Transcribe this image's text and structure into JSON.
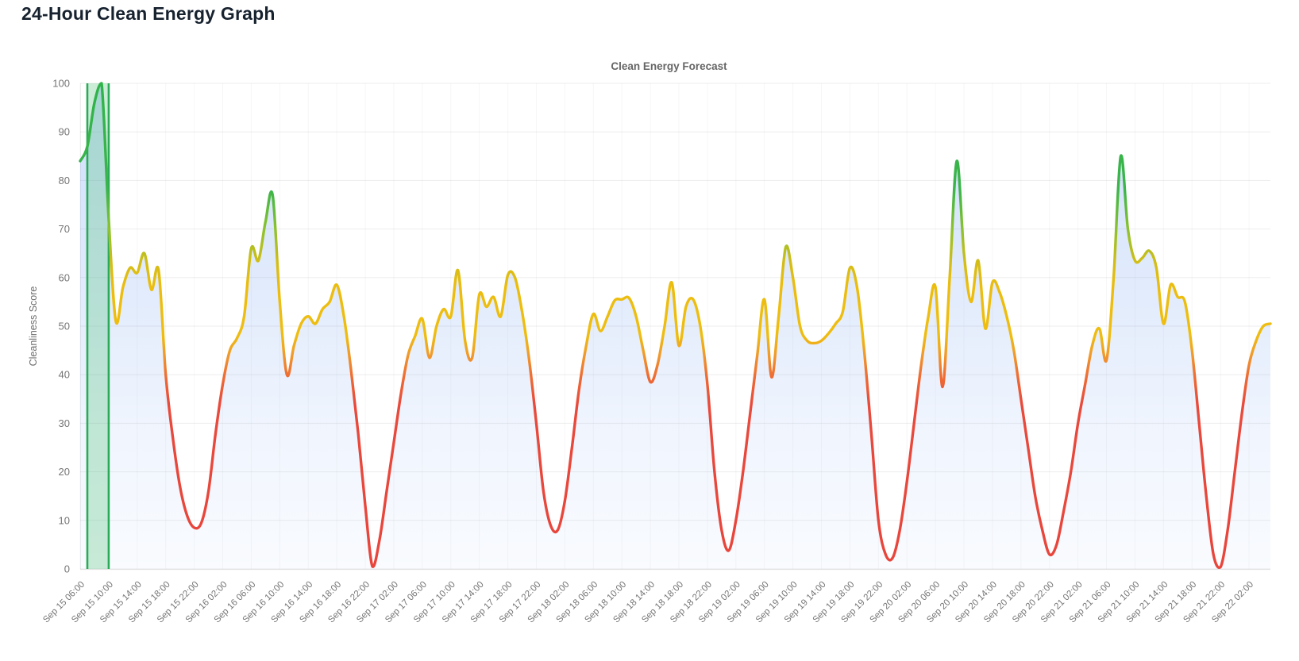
{
  "page": {
    "title": "24-Hour Clean Energy Graph"
  },
  "colors": {
    "page_title": "#17222f",
    "chart_title": "#666666",
    "axis_text": "#757575",
    "grid_line": "#ededed",
    "axis_line": "#e2e2e2",
    "line_red": "#e8453c",
    "line_orange": "#f0922f",
    "line_yellow": "#eebd10",
    "line_green": "#2fb34a",
    "area_fill_blue": "#6b9cf0",
    "band_green_fill": "#46be6e",
    "band_green_border": "#22a750"
  },
  "chart_data": {
    "type": "line",
    "title": "Clean Energy Forecast",
    "xlabel": "",
    "ylabel": "Cleanliness Score",
    "ylim": [
      0,
      100
    ],
    "y_tick_step": 10,
    "y_tick_labels": [
      "0",
      "10",
      "20",
      "30",
      "40",
      "50",
      "60",
      "70",
      "80",
      "90",
      "100"
    ],
    "grid": true,
    "legend": "none",
    "points_per_tick": 4,
    "hours_per_point": 1,
    "tick_labels": [
      "Sep 15 06:00",
      "Sep 15 10:00",
      "Sep 15 14:00",
      "Sep 15 18:00",
      "Sep 15 22:00",
      "Sep 16 02:00",
      "Sep 16 06:00",
      "Sep 16 10:00",
      "Sep 16 14:00",
      "Sep 16 18:00",
      "Sep 16 22:00",
      "Sep 17 02:00",
      "Sep 17 06:00",
      "Sep 17 10:00",
      "Sep 17 14:00",
      "Sep 17 18:00",
      "Sep 17 22:00",
      "Sep 18 02:00",
      "Sep 18 06:00",
      "Sep 18 10:00",
      "Sep 18 14:00",
      "Sep 18 18:00",
      "Sep 18 22:00",
      "Sep 19 02:00",
      "Sep 19 06:00",
      "Sep 19 10:00",
      "Sep 19 14:00",
      "Sep 19 18:00",
      "Sep 19 22:00",
      "Sep 20 02:00",
      "Sep 20 06:00",
      "Sep 20 10:00",
      "Sep 20 14:00",
      "Sep 20 18:00",
      "Sep 20 22:00",
      "Sep 21 02:00",
      "Sep 21 06:00",
      "Sep 21 10:00",
      "Sep 21 14:00",
      "Sep 21 18:00",
      "Sep 21 22:00",
      "Sep 22 02:00"
    ],
    "series": [
      {
        "name": "Cleanliness Score",
        "values": [
          84,
          87,
          96,
          100,
          72,
          51,
          58,
          62,
          61,
          65,
          57.5,
          61.5,
          40,
          27,
          17,
          11,
          8.5,
          9.5,
          16,
          28,
          38,
          45,
          47.5,
          52,
          66,
          63.5,
          71.5,
          77,
          55,
          40,
          46,
          50.5,
          52,
          50.5,
          53.5,
          55,
          58.5,
          52,
          41,
          28,
          13,
          0.5,
          6,
          16,
          26,
          36,
          44,
          48,
          51.5,
          43.5,
          50,
          53.5,
          52,
          61.5,
          47,
          43.5,
          56.5,
          54,
          56,
          52,
          60.5,
          60,
          53,
          43,
          30,
          16,
          9,
          8,
          14,
          25,
          37,
          46,
          52.5,
          49,
          52,
          55.3,
          55.5,
          55.8,
          52,
          45,
          38.5,
          42,
          50,
          59,
          46,
          54,
          55.5,
          50,
          38,
          20,
          8,
          3.8,
          10,
          20,
          32,
          44,
          55.5,
          39.5,
          52,
          66.3,
          60,
          50,
          47,
          46.5,
          47,
          48.5,
          50.5,
          53,
          62,
          58,
          45,
          28,
          10,
          3,
          2.3,
          8,
          18,
          30,
          42,
          52,
          58,
          37.5,
          60,
          84,
          65,
          55,
          63.5,
          49.5,
          59,
          57,
          52,
          45,
          35,
          25,
          15,
          8,
          3,
          5,
          12,
          20,
          30,
          38,
          46,
          49.5,
          43,
          60,
          85,
          70,
          63.5,
          64,
          65.5,
          62,
          50.5,
          58.5,
          56,
          55,
          45,
          30,
          15,
          3,
          0.4,
          8,
          20,
          32,
          42,
          47,
          50,
          50.5
        ]
      }
    ],
    "line_color_stops_by_value": [
      {
        "value": 100,
        "color": "#2fb34a"
      },
      {
        "value": 78,
        "color": "#3cb54a"
      },
      {
        "value": 70,
        "color": "#8cc22e"
      },
      {
        "value": 63,
        "color": "#d4bd17"
      },
      {
        "value": 58,
        "color": "#ecbd0e"
      },
      {
        "value": 48,
        "color": "#eebd10"
      },
      {
        "value": 44,
        "color": "#f0992c"
      },
      {
        "value": 40,
        "color": "#ee6f33"
      },
      {
        "value": 34,
        "color": "#e84a3c"
      },
      {
        "value": 0,
        "color": "#e8453c"
      }
    ],
    "highlight_band": {
      "from_index": 1,
      "to_index": 4,
      "from_label": "Sep 15 07:00",
      "to_label": "Sep 15 10:00"
    }
  }
}
